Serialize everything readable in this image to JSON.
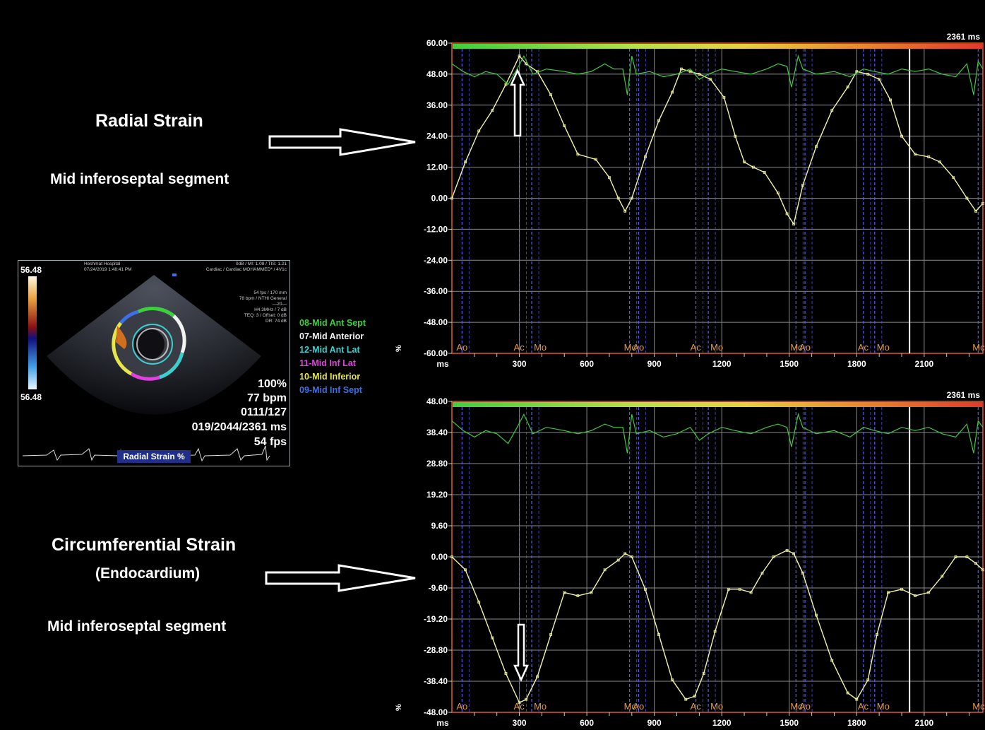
{
  "labels": {
    "radial_title": "Radial Strain",
    "radial_segment": "Mid inferoseptal segment",
    "circ_title": "Circumferential Strain",
    "circ_sub": "(Endocardium)",
    "circ_segment": "Mid inferoseptal segment"
  },
  "echo": {
    "scale_top": "56.48",
    "scale_bottom": "56.48",
    "hospital": "Heshmat Hospital",
    "datetime": "07/24/2019 1:48:41 PM",
    "settings_line1": "0dB / MI: 1.08 / TIS: 1.21",
    "settings_line2": "Cardiac / Cardiac MOHAMMED* / 4V1c",
    "params": [
      "54 fps / 170 mm",
      "78 bpm / NTHI General",
      "—20—",
      "H4.3MHz / 7 dB",
      "TEQ: 3 / Offset: 0 dB",
      "DR: 74 dB"
    ],
    "zoom": "100%",
    "bpm": "77 bpm",
    "frame": "0111/127",
    "time": "019/2044/2361 ms",
    "fps": "54 fps",
    "mode_label": "Radial Strain %"
  },
  "legend": [
    {
      "label": "08-Mid Ant Sept",
      "color": "#3ecf3e"
    },
    {
      "label": "07-Mid Anterior",
      "color": "#f2f2f2"
    },
    {
      "label": "12-Mid Ant Lat",
      "color": "#3ad0d0"
    },
    {
      "label": "11-Mid Inf Lat",
      "color": "#e040e0"
    },
    {
      "label": "10-Mid Inferior",
      "color": "#e6e64a"
    },
    {
      "label": "09-Mid Inf Sept",
      "color": "#3f6fe6"
    }
  ],
  "chart_data": [
    {
      "type": "line",
      "title": "Radial Strain",
      "xlabel": "ms",
      "ylabel": "%",
      "duration_label": "2361 ms",
      "xlim": [
        0,
        2361
      ],
      "ylim": [
        -60,
        60
      ],
      "xticks": [
        300,
        600,
        900,
        1200,
        1500,
        1800,
        2100
      ],
      "yticks": [
        "60.00",
        "48.00",
        "36.00",
        "24.00",
        "12.00",
        "0.00",
        "-12.00",
        "-24.00",
        "-36.00",
        "-48.00",
        "-60.00"
      ],
      "markers": [
        {
          "label": "Ao",
          "x": 45
        },
        {
          "label": "Ac",
          "x": 300
        },
        {
          "label": "Mo",
          "x": 355
        },
        {
          "label": "Mc",
          "x": 790
        },
        {
          "label": "Ao",
          "x": 830
        },
        {
          "label": "Ac",
          "x": 1085
        },
        {
          "label": "Mo",
          "x": 1140
        },
        {
          "label": "Mc",
          "x": 1530
        },
        {
          "label": "Ao",
          "x": 1570
        },
        {
          "label": "Ac",
          "x": 1830
        },
        {
          "label": "Mo",
          "x": 1880
        },
        {
          "label": "Mc",
          "x": 2340
        }
      ],
      "series": [
        {
          "color": "#f3f3a5",
          "x": [
            0,
            60,
            120,
            180,
            240,
            300,
            330,
            380,
            440,
            500,
            560,
            640,
            700,
            740,
            770,
            800,
            860,
            920,
            980,
            1020,
            1060,
            1100,
            1150,
            1210,
            1260,
            1300,
            1340,
            1390,
            1450,
            1490,
            1520,
            1560,
            1620,
            1690,
            1760,
            1800,
            1850,
            1900,
            1950,
            2000,
            2060,
            2120,
            2170,
            2230,
            2290,
            2330,
            2361
          ],
          "y": [
            0,
            14,
            26,
            34,
            44,
            55,
            52,
            49,
            40,
            28,
            17,
            15,
            8,
            0,
            -5,
            0,
            16,
            30,
            41,
            50,
            49,
            48,
            46,
            39,
            24,
            14,
            12,
            10,
            2,
            -6,
            -10,
            5,
            20,
            34,
            43,
            49,
            48,
            46,
            38,
            24,
            17,
            16,
            14,
            8,
            0,
            -5,
            -2
          ]
        },
        {
          "color": "#3fc93f",
          "x": [
            0,
            50,
            100,
            150,
            200,
            250,
            290,
            320,
            360,
            420,
            500,
            560,
            620,
            680,
            720,
            760,
            780,
            800,
            820,
            880,
            940,
            1000,
            1060,
            1100,
            1140,
            1200,
            1260,
            1330,
            1400,
            1450,
            1490,
            1510,
            1540,
            1560,
            1620,
            1700,
            1770,
            1830,
            1880,
            1940,
            2000,
            2060,
            2120,
            2180,
            2240,
            2290,
            2320,
            2340,
            2361
          ],
          "y": [
            52,
            49,
            47,
            49,
            48,
            44,
            50,
            55,
            48,
            50,
            49,
            48,
            49,
            52,
            50,
            50,
            40,
            55,
            48,
            49,
            47,
            48,
            50,
            46,
            48,
            50,
            49,
            48,
            50,
            52,
            51,
            43,
            55,
            50,
            48,
            49,
            47,
            50,
            49,
            48,
            50,
            49,
            50,
            48,
            47,
            52,
            40,
            53,
            50
          ]
        }
      ]
    },
    {
      "type": "line",
      "title": "Circumferential Strain",
      "xlabel": "ms",
      "ylabel": "%",
      "duration_label": "2361 ms",
      "xlim": [
        0,
        2361
      ],
      "ylim": [
        -48,
        48
      ],
      "xticks": [
        300,
        600,
        900,
        1200,
        1500,
        1800,
        2100
      ],
      "yticks": [
        "48.00",
        "38.40",
        "28.80",
        "19.20",
        "9.60",
        "0.00",
        "-9.60",
        "-19.20",
        "-28.80",
        "-38.40",
        "-48.00"
      ],
      "markers": [
        {
          "label": "Ao",
          "x": 45
        },
        {
          "label": "Ac",
          "x": 300
        },
        {
          "label": "Mo",
          "x": 355
        },
        {
          "label": "Mc",
          "x": 790
        },
        {
          "label": "Ao",
          "x": 830
        },
        {
          "label": "Ac",
          "x": 1085
        },
        {
          "label": "Mo",
          "x": 1140
        },
        {
          "label": "Mc",
          "x": 1530
        },
        {
          "label": "Ao",
          "x": 1570
        },
        {
          "label": "Ac",
          "x": 1830
        },
        {
          "label": "Mo",
          "x": 1880
        },
        {
          "label": "Mc",
          "x": 2340
        }
      ],
      "series": [
        {
          "color": "#f3f3a5",
          "x": [
            0,
            60,
            120,
            180,
            240,
            300,
            330,
            380,
            440,
            500,
            560,
            620,
            680,
            740,
            770,
            800,
            860,
            920,
            980,
            1040,
            1080,
            1120,
            1170,
            1230,
            1280,
            1330,
            1380,
            1430,
            1490,
            1520,
            1560,
            1620,
            1690,
            1760,
            1800,
            1850,
            1890,
            1940,
            2000,
            2060,
            2120,
            2180,
            2240,
            2290,
            2330,
            2361
          ],
          "y": [
            0,
            -4,
            -14,
            -25,
            -36,
            -45,
            -44,
            -37,
            -24,
            -11,
            -12,
            -11,
            -4,
            -1,
            1,
            0,
            -10,
            -24,
            -38,
            -44,
            -43,
            -36,
            -23,
            -10,
            -10,
            -11,
            -5,
            0,
            2,
            1,
            -5,
            -18,
            -32,
            -42,
            -44,
            -38,
            -24,
            -11,
            -10,
            -12,
            -11,
            -6,
            0,
            0,
            -2,
            -4
          ]
        },
        {
          "color": "#3fc93f",
          "x": [
            0,
            50,
            100,
            150,
            200,
            250,
            290,
            320,
            360,
            420,
            500,
            560,
            620,
            680,
            720,
            760,
            780,
            800,
            820,
            880,
            940,
            1000,
            1060,
            1100,
            1140,
            1200,
            1260,
            1330,
            1400,
            1450,
            1490,
            1510,
            1540,
            1560,
            1620,
            1700,
            1770,
            1830,
            1880,
            1940,
            2000,
            2060,
            2120,
            2180,
            2240,
            2290,
            2320,
            2340,
            2361
          ],
          "y": [
            42,
            39,
            37,
            39,
            38,
            35,
            40,
            44,
            38,
            40,
            39,
            38,
            39,
            41,
            40,
            40,
            32,
            44,
            38,
            39,
            37,
            38,
            40,
            36,
            38,
            40,
            39,
            38,
            40,
            41,
            40,
            34,
            44,
            40,
            38,
            39,
            37,
            40,
            39,
            38,
            40,
            39,
            40,
            38,
            37,
            41,
            32,
            42,
            40
          ]
        }
      ]
    }
  ]
}
